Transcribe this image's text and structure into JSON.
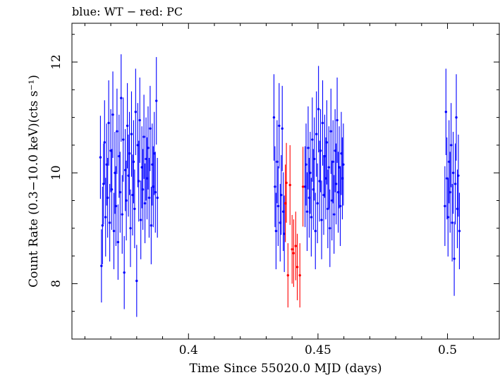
{
  "chart_data": {
    "type": "scatter",
    "title": "blue: WT − red: PC",
    "xlabel": "Time Since 55020.0 MJD (days)",
    "ylabel": "Count Rate (0.3−10.0 keV)(cts s⁻¹)",
    "xlim": [
      0.355,
      0.52
    ],
    "ylim": [
      7.0,
      12.7
    ],
    "x_ticks": [
      0.4,
      0.45,
      0.5
    ],
    "x_tick_labels": [
      "0.4",
      "0.45",
      "0.5"
    ],
    "y_ticks": [
      8,
      10,
      12
    ],
    "y_tick_labels": [
      "8",
      "10",
      "12"
    ],
    "grid": false,
    "series": [
      {
        "name": "WT",
        "color": "#0000ff",
        "points": [
          {
            "x": 0.366,
            "y": 10.28,
            "err": 0.75
          },
          {
            "x": 0.3664,
            "y": 8.32,
            "err": 0.66
          },
          {
            "x": 0.3668,
            "y": 9.05,
            "err": 0.7
          },
          {
            "x": 0.3672,
            "y": 9.8,
            "err": 0.73
          },
          {
            "x": 0.3676,
            "y": 10.55,
            "err": 0.76
          },
          {
            "x": 0.368,
            "y": 9.2,
            "err": 0.71
          },
          {
            "x": 0.3684,
            "y": 10.15,
            "err": 0.74
          },
          {
            "x": 0.3688,
            "y": 9.55,
            "err": 0.72
          },
          {
            "x": 0.3692,
            "y": 10.9,
            "err": 0.77
          },
          {
            "x": 0.3696,
            "y": 9.1,
            "err": 0.7
          },
          {
            "x": 0.37,
            "y": 10.4,
            "err": 0.75
          },
          {
            "x": 0.3704,
            "y": 9.7,
            "err": 0.73
          },
          {
            "x": 0.3708,
            "y": 11.05,
            "err": 0.78
          },
          {
            "x": 0.3712,
            "y": 8.95,
            "err": 0.69
          },
          {
            "x": 0.3716,
            "y": 10.0,
            "err": 0.74
          },
          {
            "x": 0.372,
            "y": 9.4,
            "err": 0.72
          },
          {
            "x": 0.3724,
            "y": 10.75,
            "err": 0.77
          },
          {
            "x": 0.3728,
            "y": 8.75,
            "err": 0.68
          },
          {
            "x": 0.3732,
            "y": 10.3,
            "err": 0.75
          },
          {
            "x": 0.3736,
            "y": 9.65,
            "err": 0.73
          },
          {
            "x": 0.374,
            "y": 11.35,
            "err": 0.79
          },
          {
            "x": 0.3744,
            "y": 9.25,
            "err": 0.71
          },
          {
            "x": 0.3748,
            "y": 10.6,
            "err": 0.76
          },
          {
            "x": 0.3752,
            "y": 8.2,
            "err": 0.66
          },
          {
            "x": 0.3756,
            "y": 10.05,
            "err": 0.74
          },
          {
            "x": 0.376,
            "y": 9.5,
            "err": 0.72
          },
          {
            "x": 0.3764,
            "y": 10.85,
            "err": 0.77
          },
          {
            "x": 0.3768,
            "y": 9.95,
            "err": 0.74
          },
          {
            "x": 0.3772,
            "y": 10.35,
            "err": 0.75
          },
          {
            "x": 0.3776,
            "y": 9.0,
            "err": 0.7
          },
          {
            "x": 0.378,
            "y": 10.7,
            "err": 0.77
          },
          {
            "x": 0.3784,
            "y": 9.6,
            "err": 0.73
          },
          {
            "x": 0.3788,
            "y": 10.2,
            "err": 0.75
          },
          {
            "x": 0.3792,
            "y": 9.35,
            "err": 0.71
          },
          {
            "x": 0.3796,
            "y": 11.1,
            "err": 0.78
          },
          {
            "x": 0.38,
            "y": 8.05,
            "err": 0.65
          },
          {
            "x": 0.3804,
            "y": 10.5,
            "err": 0.76
          },
          {
            "x": 0.3808,
            "y": 9.85,
            "err": 0.73
          },
          {
            "x": 0.3812,
            "y": 10.95,
            "err": 0.77
          },
          {
            "x": 0.3816,
            "y": 9.15,
            "err": 0.71
          },
          {
            "x": 0.382,
            "y": 10.1,
            "err": 0.74
          },
          {
            "x": 0.3824,
            "y": 9.7,
            "err": 0.73
          },
          {
            "x": 0.3828,
            "y": 10.65,
            "err": 0.76
          },
          {
            "x": 0.3832,
            "y": 9.45,
            "err": 0.72
          },
          {
            "x": 0.3836,
            "y": 10.25,
            "err": 0.75
          },
          {
            "x": 0.384,
            "y": 9.9,
            "err": 0.74
          },
          {
            "x": 0.3844,
            "y": 10.45,
            "err": 0.75
          },
          {
            "x": 0.3848,
            "y": 9.55,
            "err": 0.72
          },
          {
            "x": 0.3852,
            "y": 10.8,
            "err": 0.77
          },
          {
            "x": 0.3856,
            "y": 9.05,
            "err": 0.7
          },
          {
            "x": 0.386,
            "y": 10.15,
            "err": 0.74
          },
          {
            "x": 0.3864,
            "y": 9.75,
            "err": 0.73
          },
          {
            "x": 0.3868,
            "y": 10.35,
            "err": 0.75
          },
          {
            "x": 0.3872,
            "y": 9.65,
            "err": 0.73
          },
          {
            "x": 0.3876,
            "y": 11.3,
            "err": 0.79
          },
          {
            "x": 0.388,
            "y": 9.55,
            "err": 0.72
          },
          {
            "x": 0.433,
            "y": 11.0,
            "err": 0.78
          },
          {
            "x": 0.4334,
            "y": 9.75,
            "err": 0.73
          },
          {
            "x": 0.4338,
            "y": 8.95,
            "err": 0.69
          },
          {
            "x": 0.4342,
            "y": 10.2,
            "err": 0.75
          },
          {
            "x": 0.4346,
            "y": 9.4,
            "err": 0.72
          },
          {
            "x": 0.435,
            "y": 10.85,
            "err": 0.77
          },
          {
            "x": 0.4354,
            "y": 9.1,
            "err": 0.7
          },
          {
            "x": 0.4358,
            "y": 9.6,
            "err": 0.72
          },
          {
            "x": 0.4362,
            "y": 10.8,
            "err": 0.77
          },
          {
            "x": 0.4366,
            "y": 9.3,
            "err": 0.71
          },
          {
            "x": 0.437,
            "y": 8.9,
            "err": 0.69
          },
          {
            "x": 0.445,
            "y": 9.75,
            "err": 0.73
          },
          {
            "x": 0.4454,
            "y": 10.15,
            "err": 0.74
          },
          {
            "x": 0.4458,
            "y": 9.3,
            "err": 0.71
          },
          {
            "x": 0.4462,
            "y": 10.45,
            "err": 0.75
          },
          {
            "x": 0.4466,
            "y": 9.55,
            "err": 0.72
          },
          {
            "x": 0.447,
            "y": 10.0,
            "err": 0.74
          },
          {
            "x": 0.4474,
            "y": 9.2,
            "err": 0.71
          },
          {
            "x": 0.4478,
            "y": 10.6,
            "err": 0.76
          },
          {
            "x": 0.4482,
            "y": 9.7,
            "err": 0.73
          },
          {
            "x": 0.4486,
            "y": 10.25,
            "err": 0.75
          },
          {
            "x": 0.449,
            "y": 8.95,
            "err": 0.69
          },
          {
            "x": 0.4494,
            "y": 10.7,
            "err": 0.77
          },
          {
            "x": 0.4498,
            "y": 9.45,
            "err": 0.72
          },
          {
            "x": 0.4502,
            "y": 11.15,
            "err": 0.78
          },
          {
            "x": 0.4506,
            "y": 9.85,
            "err": 0.73
          },
          {
            "x": 0.451,
            "y": 10.4,
            "err": 0.75
          },
          {
            "x": 0.4514,
            "y": 9.15,
            "err": 0.71
          },
          {
            "x": 0.4518,
            "y": 10.9,
            "err": 0.77
          },
          {
            "x": 0.4522,
            "y": 9.6,
            "err": 0.72
          },
          {
            "x": 0.4526,
            "y": 10.3,
            "err": 0.75
          },
          {
            "x": 0.453,
            "y": 9.9,
            "err": 0.74
          },
          {
            "x": 0.4534,
            "y": 10.55,
            "err": 0.76
          },
          {
            "x": 0.4538,
            "y": 9.35,
            "err": 0.71
          },
          {
            "x": 0.4542,
            "y": 10.1,
            "err": 0.74
          },
          {
            "x": 0.4546,
            "y": 9.0,
            "err": 0.7
          },
          {
            "x": 0.455,
            "y": 10.75,
            "err": 0.77
          },
          {
            "x": 0.4554,
            "y": 9.5,
            "err": 0.72
          },
          {
            "x": 0.4558,
            "y": 10.2,
            "err": 0.75
          },
          {
            "x": 0.4562,
            "y": 9.25,
            "err": 0.71
          },
          {
            "x": 0.4566,
            "y": 10.4,
            "err": 0.75
          },
          {
            "x": 0.457,
            "y": 9.8,
            "err": 0.73
          },
          {
            "x": 0.4574,
            "y": 10.95,
            "err": 0.77
          },
          {
            "x": 0.4578,
            "y": 9.65,
            "err": 0.73
          },
          {
            "x": 0.4582,
            "y": 10.1,
            "err": 0.74
          },
          {
            "x": 0.4586,
            "y": 9.4,
            "err": 0.72
          },
          {
            "x": 0.459,
            "y": 10.35,
            "err": 0.75
          },
          {
            "x": 0.4594,
            "y": 9.9,
            "err": 0.74
          },
          {
            "x": 0.4598,
            "y": 10.15,
            "err": 0.74
          },
          {
            "x": 0.499,
            "y": 9.4,
            "err": 0.72
          },
          {
            "x": 0.4994,
            "y": 11.1,
            "err": 0.78
          },
          {
            "x": 0.4998,
            "y": 9.9,
            "err": 0.74
          },
          {
            "x": 0.5002,
            "y": 9.2,
            "err": 0.71
          },
          {
            "x": 0.5006,
            "y": 10.2,
            "err": 0.75
          },
          {
            "x": 0.501,
            "y": 9.65,
            "err": 0.73
          },
          {
            "x": 0.5014,
            "y": 10.5,
            "err": 0.76
          },
          {
            "x": 0.5018,
            "y": 9.1,
            "err": 0.7
          },
          {
            "x": 0.5022,
            "y": 10.0,
            "err": 0.74
          },
          {
            "x": 0.5026,
            "y": 8.45,
            "err": 0.67
          },
          {
            "x": 0.503,
            "y": 9.8,
            "err": 0.73
          },
          {
            "x": 0.5034,
            "y": 11.0,
            "err": 0.78
          },
          {
            "x": 0.5038,
            "y": 9.35,
            "err": 0.71
          },
          {
            "x": 0.5042,
            "y": 9.95,
            "err": 0.74
          },
          {
            "x": 0.5046,
            "y": 8.95,
            "err": 0.69
          }
        ]
      },
      {
        "name": "PC",
        "color": "#ff0000",
        "points": [
          {
            "x": 0.4374,
            "y": 9.45,
            "err": 0.7
          },
          {
            "x": 0.4378,
            "y": 9.82,
            "err": 0.72
          },
          {
            "x": 0.4384,
            "y": 8.15,
            "err": 0.58
          },
          {
            "x": 0.4392,
            "y": 9.78,
            "err": 0.72
          },
          {
            "x": 0.44,
            "y": 8.62,
            "err": 0.62
          },
          {
            "x": 0.4406,
            "y": 8.55,
            "err": 0.61
          },
          {
            "x": 0.4414,
            "y": 8.68,
            "err": 0.62
          },
          {
            "x": 0.442,
            "y": 8.3,
            "err": 0.6
          },
          {
            "x": 0.443,
            "y": 8.15,
            "err": 0.58
          },
          {
            "x": 0.4442,
            "y": 9.75,
            "err": 0.72
          }
        ]
      }
    ]
  }
}
